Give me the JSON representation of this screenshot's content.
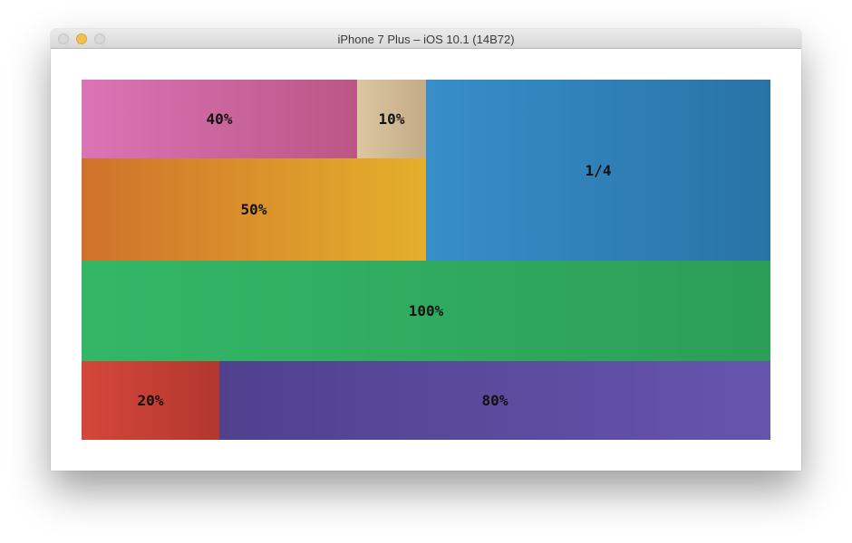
{
  "window": {
    "title": "iPhone 7 Plus – iOS 10.1 (14B72)"
  },
  "blocks": {
    "forty": {
      "label": "40%",
      "color_start": "#db74b6",
      "color_end": "#bb5686"
    },
    "ten": {
      "label": "10%",
      "color_start": "#dcc7a1",
      "color_end": "#c3aa86"
    },
    "fifty": {
      "label": "50%",
      "color_start": "#cf722b",
      "color_end": "#e4b02b"
    },
    "quarter": {
      "label": "1/4",
      "color_start": "#378ec9",
      "color_end": "#2873a6"
    },
    "hundred": {
      "label": "100%",
      "color_start": "#33b767",
      "color_end": "#2c9e56"
    },
    "twenty": {
      "label": "20%",
      "color_start": "#d5473b",
      "color_end": "#b2372d"
    },
    "eighty": {
      "label": "80%",
      "color_start": "#4f418e",
      "color_end": "#6655ad"
    }
  }
}
